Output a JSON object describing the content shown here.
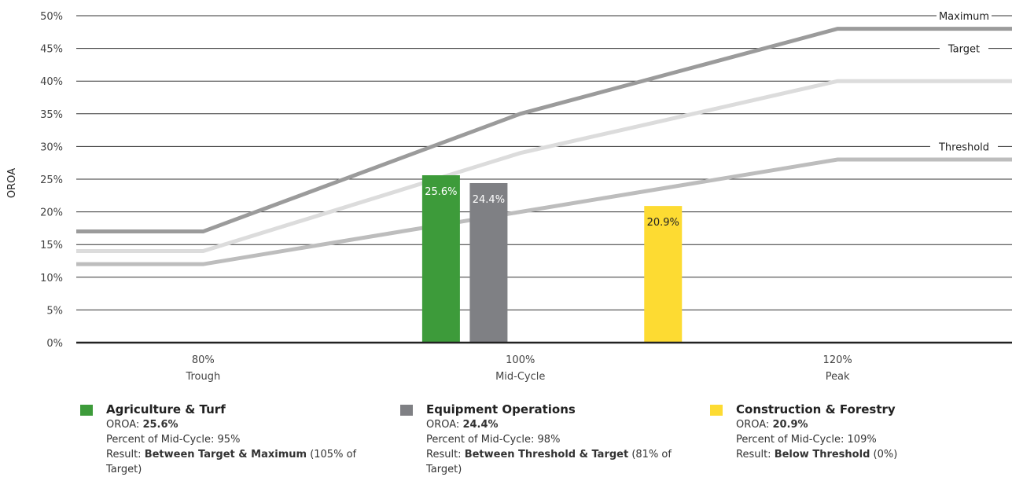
{
  "chart_data": {
    "type": "bar",
    "ylabel": "OROA",
    "ylim": [
      0,
      50
    ],
    "yticks": [
      0,
      5,
      10,
      15,
      20,
      25,
      30,
      35,
      40,
      45,
      50
    ],
    "ytick_suffix": "%",
    "grid": true,
    "x_ticks": [
      {
        "x": 80,
        "label1": "80%",
        "label2": "Trough"
      },
      {
        "x": 100,
        "label1": "100%",
        "label2": "Mid-Cycle"
      },
      {
        "x": 120,
        "label1": "120%",
        "label2": "Peak"
      }
    ],
    "xlim": [
      72,
      131
    ],
    "lines": [
      {
        "name": "Maximum",
        "color": "#9b9b9b",
        "points": [
          [
            72,
            17
          ],
          [
            80,
            17
          ],
          [
            100,
            35
          ],
          [
            120,
            48
          ],
          [
            131,
            48
          ]
        ]
      },
      {
        "name": "Target",
        "color": "#dcdcdc",
        "points": [
          [
            72,
            14
          ],
          [
            80,
            14
          ],
          [
            100,
            29
          ],
          [
            120,
            40
          ],
          [
            131,
            40
          ]
        ]
      },
      {
        "name": "Threshold",
        "color": "#bdbdbd",
        "points": [
          [
            72,
            12
          ],
          [
            80,
            12
          ],
          [
            100,
            20
          ],
          [
            120,
            28
          ],
          [
            131,
            28
          ]
        ]
      }
    ],
    "bars": [
      {
        "name": "Agriculture & Turf",
        "x": 95,
        "value": 25.6,
        "label": "25.6%",
        "color": "#3d9b3a",
        "label_color": "#ffffff"
      },
      {
        "name": "Equipment Operations",
        "x": 98,
        "value": 24.4,
        "label": "24.4%",
        "color": "#7f8084",
        "label_color": "#ffffff"
      },
      {
        "name": "Construction & Forestry",
        "x": 109,
        "value": 20.9,
        "label": "20.9%",
        "color": "#fddb32",
        "label_color": "#222222"
      }
    ]
  },
  "legend": [
    {
      "title": "Agriculture & Turf",
      "color": "#3d9b3a",
      "oroa_label": "OROA: ",
      "oroa_value": "25.6%",
      "pct_text": "Percent of Mid-Cycle: 95%",
      "result_label": "Result: ",
      "result_value": "Between Target & Maximum",
      "result_note": " (105% of Target)"
    },
    {
      "title": "Equipment Operations",
      "color": "#7f8084",
      "oroa_label": "OROA: ",
      "oroa_value": "24.4%",
      "pct_text": "Percent of Mid-Cycle: 98%",
      "result_label": "Result: ",
      "result_value": "Between Threshold & Target",
      "result_note": " (81% of Target)"
    },
    {
      "title": "Construction & Forestry",
      "color": "#fddb32",
      "oroa_label": "OROA: ",
      "oroa_value": "20.9%",
      "pct_text": "Percent of Mid-Cycle: 109%",
      "result_label": "Result: ",
      "result_value": "Below Threshold",
      "result_note": " (0%)"
    }
  ]
}
